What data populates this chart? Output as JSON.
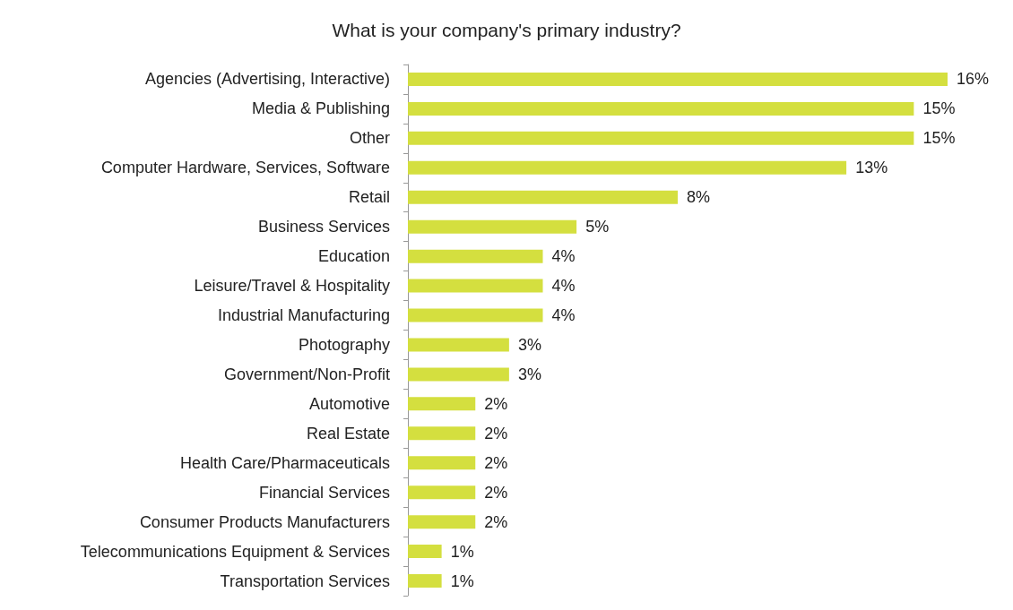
{
  "chart_data": {
    "type": "bar",
    "orientation": "horizontal",
    "title": "What is your company's primary industry?",
    "categories": [
      "Agencies (Advertising, Interactive)",
      "Media & Publishing",
      "Other",
      "Computer Hardware, Services, Software",
      "Retail",
      "Business Services",
      "Education",
      "Leisure/Travel & Hospitality",
      "Industrial Manufacturing",
      "Photography",
      "Government/Non-Profit",
      "Automotive",
      "Real Estate",
      "Health Care/Pharmaceuticals",
      "Financial Services",
      "Consumer Products Manufacturers",
      "Telecommunications Equipment & Services",
      "Transportation Services"
    ],
    "values": [
      16,
      15,
      15,
      13,
      8,
      5,
      4,
      4,
      4,
      3,
      3,
      2,
      2,
      2,
      2,
      2,
      1,
      1
    ],
    "value_labels": [
      "16%",
      "15%",
      "15%",
      "13%",
      "8%",
      "5%",
      "4%",
      "4%",
      "4%",
      "3%",
      "3%",
      "2%",
      "2%",
      "2%",
      "2%",
      "2%",
      "1%",
      "1%"
    ],
    "color": "#d4df3f"
  }
}
